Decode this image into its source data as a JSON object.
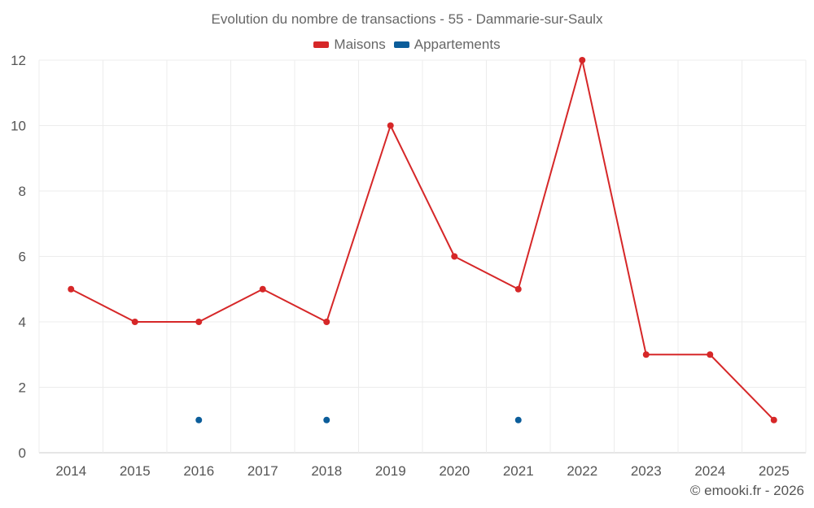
{
  "chart_data": {
    "type": "line",
    "title": "Evolution du nombre de transactions - 55 - Dammarie-sur-Saulx",
    "categories": [
      "2014",
      "2015",
      "2016",
      "2017",
      "2018",
      "2019",
      "2020",
      "2021",
      "2022",
      "2023",
      "2024",
      "2025"
    ],
    "series": [
      {
        "name": "Maisons",
        "color": "#d62728",
        "values": [
          5,
          4,
          4,
          5,
          4,
          10,
          6,
          5,
          12,
          3,
          3,
          1
        ]
      },
      {
        "name": "Appartements",
        "color": "#0b5d9a",
        "values": [
          null,
          null,
          1,
          null,
          1,
          null,
          null,
          1,
          null,
          null,
          null,
          null
        ]
      }
    ],
    "ylim": [
      0,
      12
    ],
    "yticks": [
      0,
      2,
      4,
      6,
      8,
      10,
      12
    ],
    "grid": true,
    "legend": "top-center",
    "credit": "© emooki.fr - 2026"
  }
}
